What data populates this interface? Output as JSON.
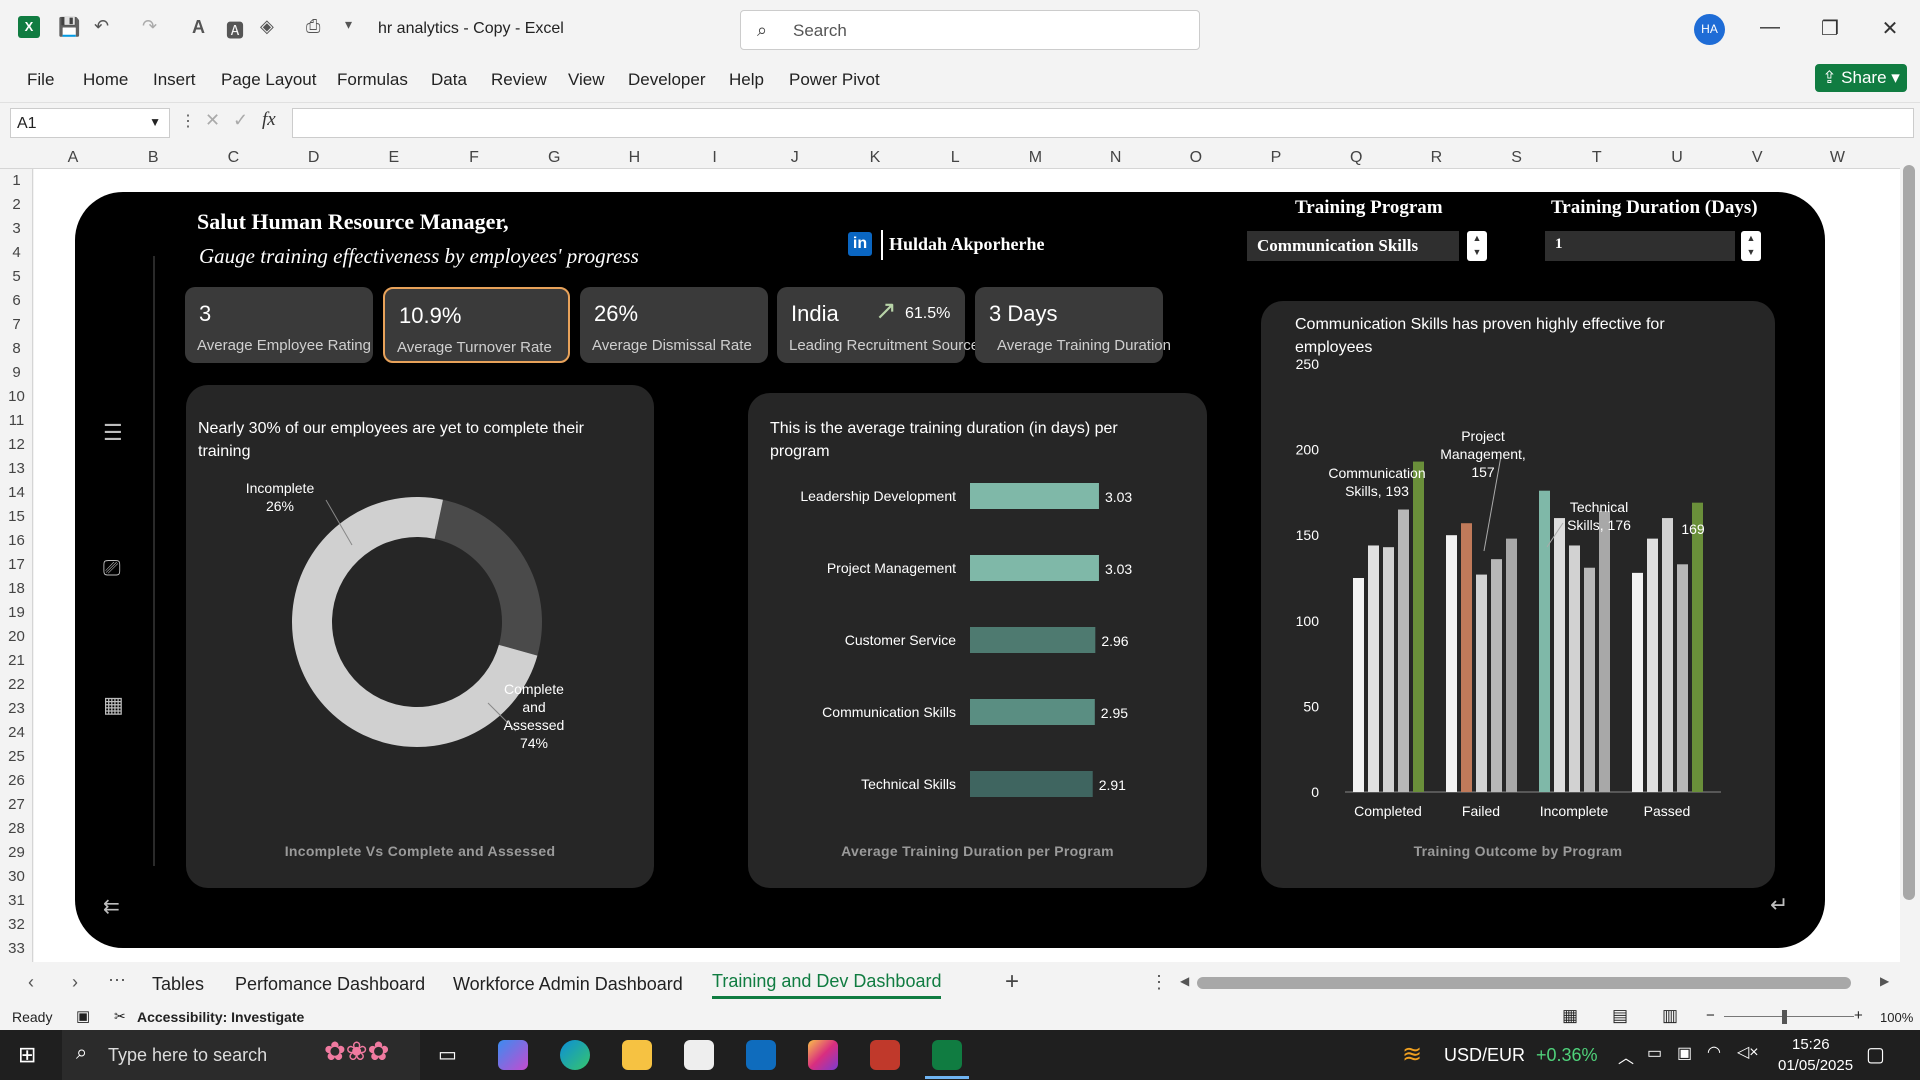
{
  "window": {
    "title": "hr analytics - Copy  -  Excel",
    "avatar": "HA"
  },
  "search": {
    "placeholder": "Search"
  },
  "ribbon": {
    "tabs": [
      "File",
      "Home",
      "Insert",
      "Page Layout",
      "Formulas",
      "Data",
      "Review",
      "View",
      "Developer",
      "Help",
      "Power Pivot"
    ],
    "share": "Share"
  },
  "formula_bar": {
    "name_box": "A1",
    "fx": "fx",
    "content": ""
  },
  "columns": [
    "A",
    "B",
    "C",
    "D",
    "E",
    "F",
    "G",
    "H",
    "I",
    "J",
    "K",
    "L",
    "M",
    "N",
    "O",
    "P",
    "Q",
    "R",
    "S",
    "T",
    "U",
    "V",
    "W"
  ],
  "rows": [
    "1",
    "2",
    "3",
    "4",
    "5",
    "6",
    "7",
    "8",
    "9",
    "10",
    "11",
    "12",
    "13",
    "14",
    "15",
    "16",
    "17",
    "18",
    "19",
    "20",
    "21",
    "22",
    "23",
    "24",
    "25",
    "26",
    "27",
    "28",
    "29",
    "30",
    "31",
    "32",
    "33"
  ],
  "dashboard": {
    "greeting": "Salut Human Resource Manager,",
    "subtitle": "Gauge training effectiveness by employees' progress",
    "author": "Huldah Akporherhe",
    "linkedin": "in",
    "filters": {
      "program_label": "Training Program",
      "program_value": "Communication Skills",
      "duration_label": "Training Duration (Days)",
      "duration_value": "1"
    },
    "kpis": [
      {
        "value": "3",
        "label": "Average Employee Rating"
      },
      {
        "value": "10.9%",
        "label": "Average Turnover Rate"
      },
      {
        "value": "26%",
        "label": "Average Dismissal Rate"
      },
      {
        "value": "India",
        "extra": "61.5%",
        "label": "Leading Recruitment Source"
      },
      {
        "value": "3 Days",
        "label": "Average Training Duration"
      }
    ],
    "donut": {
      "title": "Nearly 30% of our employees are yet to complete their training",
      "footer": "Incomplete Vs Complete and Assessed"
    },
    "bar": {
      "title": "This is the average training duration (in days) per program",
      "footer": "Average Training Duration per Program"
    },
    "column": {
      "title": "Communication Skills has proven highly effective for employees",
      "footer": "Training Outcome by Program"
    }
  },
  "chart_data": [
    {
      "type": "pie",
      "title": "Incomplete Vs Complete and Assessed",
      "categories": [
        "Incomplete",
        "Complete and Assessed"
      ],
      "values": [
        26,
        74
      ],
      "data_labels": [
        "Incomplete\n26%",
        "Complete\nand\nAssessed\n74%"
      ],
      "colors": [
        "#4a4a4a",
        "#d0d0d0"
      ]
    },
    {
      "type": "bar",
      "title": "Average Training Duration per Program",
      "categories": [
        "Leadership Development",
        "Project Management",
        "Customer Service",
        "Communication Skills",
        "Technical Skills"
      ],
      "values": [
        3.03,
        3.03,
        2.96,
        2.95,
        2.91
      ],
      "colors": [
        "#7fb8a8",
        "#7fb8a8",
        "#4e7a70",
        "#5a8e82",
        "#3f6560"
      ]
    },
    {
      "type": "bar",
      "title": "Training Outcome by Program",
      "categories": [
        "Completed",
        "Failed",
        "Incomplete",
        "Passed"
      ],
      "ylim": [
        0,
        250
      ],
      "yticks": [
        0,
        50,
        100,
        150,
        200,
        250
      ],
      "series": [
        {
          "values": [
            125,
            150,
            176,
            128
          ],
          "colors": [
            "#f2f2f2",
            "#f2f2f2",
            "#7fb8a8",
            "#f2f2f2"
          ]
        },
        {
          "values": [
            144,
            157,
            160,
            148
          ],
          "colors": [
            "#e0e0e0",
            "#c07a5a",
            "#dddddd",
            "#e0e0e0"
          ]
        },
        {
          "values": [
            143,
            127,
            144,
            160
          ],
          "colors": [
            "#d2d2d2",
            "#d2d2d2",
            "#d2d2d2",
            "#d2d2d2"
          ]
        },
        {
          "values": [
            165,
            136,
            131,
            133
          ],
          "colors": [
            "#b8b8b8",
            "#b8b8b8",
            "#b8b8b8",
            "#b8b8b8"
          ]
        },
        {
          "values": [
            193,
            148,
            164,
            169
          ],
          "colors": [
            "#6a8f3a",
            "#a8a8a8",
            "#a8a8a8",
            "#6a8f3a"
          ]
        }
      ],
      "annotations": [
        "Communication Skills, 193",
        "Project Management, 157",
        "Technical Skills, 176",
        "169"
      ]
    }
  ],
  "sheet_tabs": [
    "Tables",
    "Perfomance Dashboard",
    "Workforce Admin Dashboard",
    "Training and Dev Dashboard"
  ],
  "status": {
    "ready": "Ready",
    "accessibility": "Accessibility: Investigate",
    "zoom": "100%"
  },
  "taskbar": {
    "search": "Type here to search",
    "ticker": "USD/EUR",
    "ticker_change": "+0.36%",
    "time": "15:26",
    "date": "01/05/2025"
  }
}
